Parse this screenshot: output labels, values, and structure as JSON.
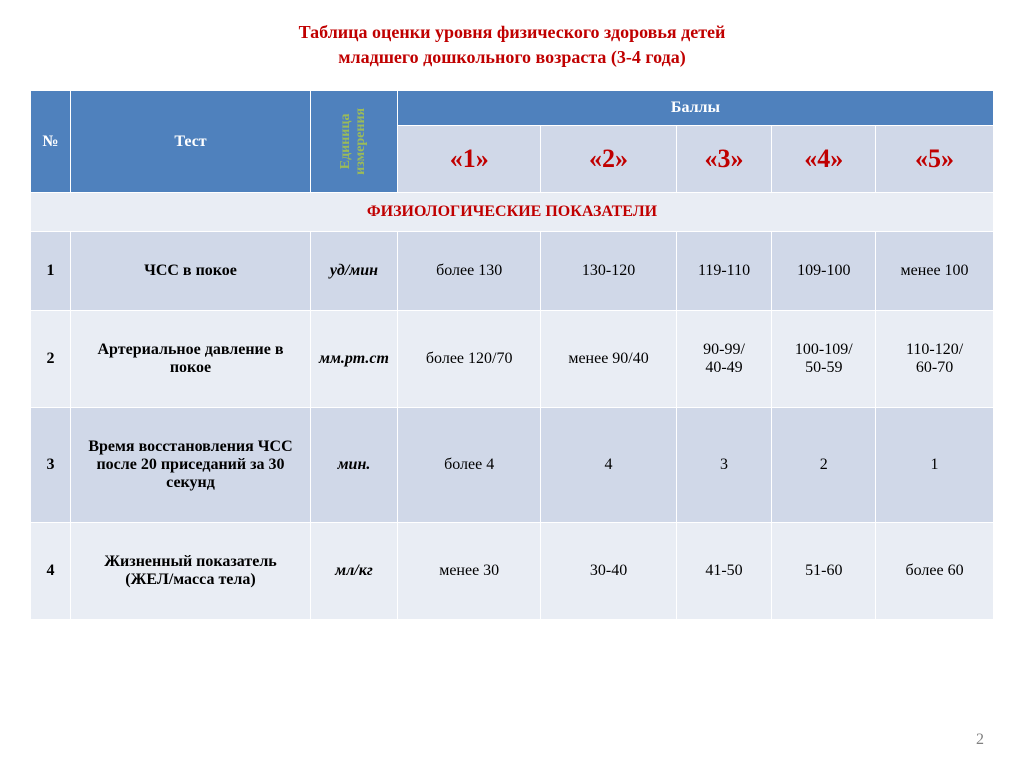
{
  "title_line1": "Таблица оценки уровня физического здоровья детей",
  "title_line2": "младшего дошкольного возраста (3-4 года)",
  "title_color": "#c00000",
  "headers": {
    "num": "№",
    "test": "Тест",
    "unit_l1": "Единица",
    "unit_l2": "измерения",
    "points": "Баллы",
    "scores": [
      "«1»",
      "«2»",
      "«3»",
      "«4»",
      "«5»"
    ]
  },
  "score_color": "#c00000",
  "section_label": "ФИЗИОЛОГИЧЕСКИЕ ПОКАЗАТЕЛИ",
  "section_color": "#c00000",
  "rows": [
    {
      "n": "1",
      "test": "ЧСС в покое",
      "unit": "уд/мин",
      "v": [
        "более 130",
        "130-120",
        "119-110",
        "109-100",
        "менее 100"
      ]
    },
    {
      "n": "2",
      "test": "Артериальное давление в покое",
      "unit": "мм.рт.ст",
      "v": [
        "более 120/70",
        "менее 90/40",
        "90-99/\n40-49",
        "100-109/\n50-59",
        "110-120/\n60-70"
      ]
    },
    {
      "n": "3",
      "test": "Время восстановления ЧСС после 20 приседаний за 30 секунд",
      "unit": "мин.",
      "v": [
        "более 4",
        "4",
        "3",
        "2",
        "1"
      ]
    },
    {
      "n": "4",
      "test": "Жизненный показатель (ЖЕЛ/масса тела)",
      "unit": "мл/кг",
      "v": [
        "менее 30",
        "30-40",
        "41-50",
        "51-60",
        "более 60"
      ]
    }
  ],
  "page_num": "2"
}
